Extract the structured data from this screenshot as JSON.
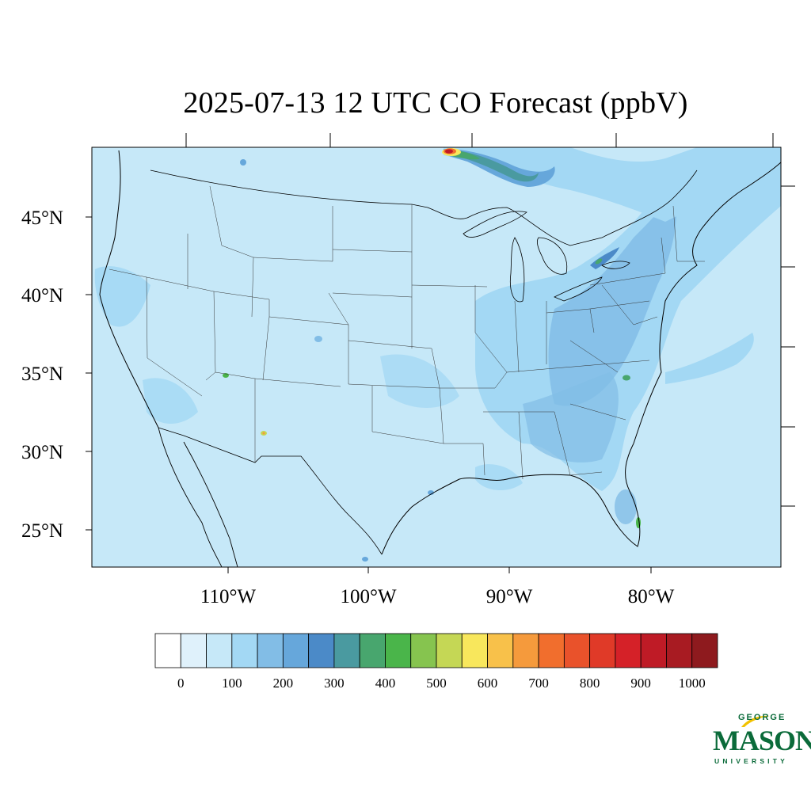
{
  "title": "2025-07-13 12 UTC CO Forecast (ppbV)",
  "map": {
    "lat_ticks": [
      {
        "lat": 45,
        "label": "45°N"
      },
      {
        "lat": 40,
        "label": "40°N"
      },
      {
        "lat": 35,
        "label": "35°N"
      },
      {
        "lat": 30,
        "label": "30°N"
      },
      {
        "lat": 25,
        "label": "25°N"
      }
    ],
    "lon_ticks": [
      {
        "lon": -110,
        "label": "110°W"
      },
      {
        "lon": -100,
        "label": "100°W"
      },
      {
        "lon": -90,
        "label": "90°W"
      },
      {
        "lon": -80,
        "label": "80°W"
      }
    ],
    "background_color": "#c6e8f8",
    "hotspots": [
      {
        "name": "canada-fire-plume",
        "value": 900
      },
      {
        "name": "ontario-plume",
        "value": 350
      },
      {
        "name": "arizona-point",
        "value": 450
      },
      {
        "name": "new-mexico-point",
        "value": 500
      },
      {
        "name": "florida-point",
        "value": 400
      },
      {
        "name": "north-carolina-point",
        "value": 400
      }
    ]
  },
  "colorbar": {
    "labels": [
      "0",
      "100",
      "200",
      "300",
      "400",
      "500",
      "600",
      "700",
      "800",
      "900",
      "1000"
    ],
    "colors": [
      "#ffffff",
      "#dff1fb",
      "#c6e8f8",
      "#a3d8f4",
      "#82bde6",
      "#66a7db",
      "#4b8ac8",
      "#4a9aa0",
      "#48a66e",
      "#4ab54a",
      "#86c44f",
      "#c5d755",
      "#f8e75c",
      "#f8c14a",
      "#f59a3c",
      "#f16e2d",
      "#e9522b",
      "#e03a28",
      "#d52128",
      "#bf1b26",
      "#a81b22",
      "#8e1a1e"
    ]
  },
  "logo": {
    "line1": "GEORGE",
    "line2": "MASON",
    "line3": "UNIVERSITY",
    "color": "#0b6b3a",
    "accent": "#f2c200"
  }
}
